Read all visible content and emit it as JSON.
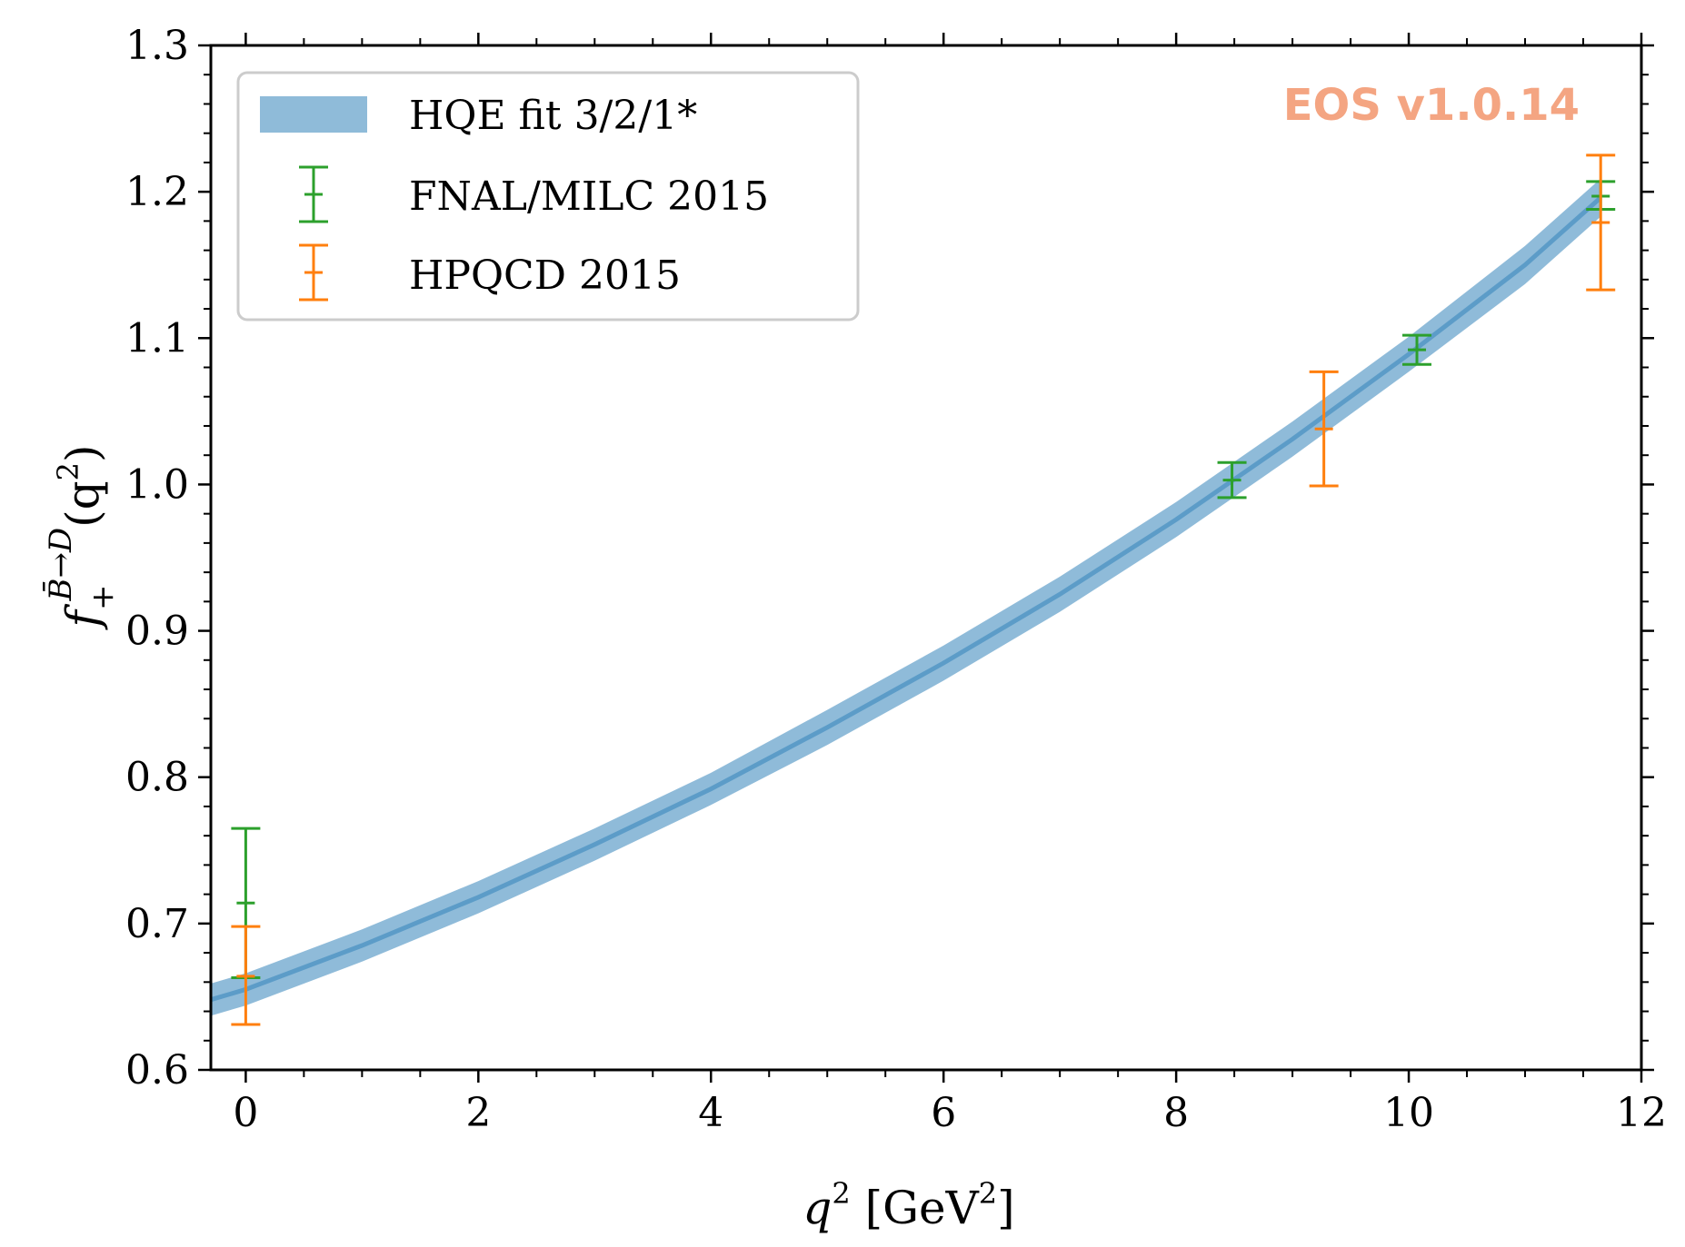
{
  "chart_data": {
    "type": "line",
    "xlabel_main": "q",
    "xlabel_sup": "2",
    "xlabel_unit_open": " [GeV",
    "xlabel_unit_sup": "2",
    "xlabel_unit_close": "]",
    "ylabel_main": "f",
    "ylabel_sup": "B̄→D",
    "ylabel_sub": "+",
    "ylabel_arg_open": "(q",
    "ylabel_arg_sup": "2",
    "ylabel_arg_close": ")",
    "xlim": [
      -0.3,
      12
    ],
    "ylim": [
      0.6,
      1.3
    ],
    "xticks": [
      0,
      2,
      4,
      6,
      8,
      10,
      12
    ],
    "xtick_labels": [
      "0",
      "2",
      "4",
      "6",
      "8",
      "10",
      "12"
    ],
    "yticks": [
      0.6,
      0.7,
      0.8,
      0.9,
      1.0,
      1.1,
      1.2,
      1.3
    ],
    "ytick_labels": [
      "0.6",
      "0.7",
      "0.8",
      "0.9",
      "1.0",
      "1.1",
      "1.2",
      "1.3"
    ],
    "watermark": "EOS v1.0.14",
    "watermark_color": "#f4a582",
    "legend_position": "top-left",
    "band": {
      "name": "HQE fit 3/2/1*",
      "color": "#1f77b4",
      "x": [
        -0.3,
        0,
        1,
        2,
        3,
        4,
        5,
        6,
        7,
        8,
        9,
        10,
        11,
        11.65
      ],
      "central": [
        0.648,
        0.655,
        0.685,
        0.718,
        0.754,
        0.792,
        0.834,
        0.878,
        0.925,
        0.976,
        1.031,
        1.089,
        1.15,
        1.196
      ],
      "lower": [
        0.637,
        0.644,
        0.674,
        0.707,
        0.743,
        0.781,
        0.822,
        0.866,
        0.913,
        0.964,
        1.019,
        1.077,
        1.137,
        1.183
      ],
      "upper": [
        0.659,
        0.666,
        0.696,
        0.729,
        0.765,
        0.803,
        0.846,
        0.89,
        0.937,
        0.988,
        1.043,
        1.101,
        1.163,
        1.209
      ]
    },
    "series": [
      {
        "name": "FNAL/MILC 2015",
        "color": "#2ca02c",
        "points": [
          {
            "x": 0.0,
            "y": 0.714,
            "yerr_low": 0.663,
            "yerr_high": 0.765
          },
          {
            "x": 8.48,
            "y": 1.003,
            "yerr_low": 0.991,
            "yerr_high": 1.015
          },
          {
            "x": 10.07,
            "y": 1.092,
            "yerr_low": 1.082,
            "yerr_high": 1.102
          },
          {
            "x": 11.65,
            "y": 1.197,
            "yerr_low": 1.188,
            "yerr_high": 1.207
          }
        ]
      },
      {
        "name": "HPQCD 2015",
        "color": "#ff7f0e",
        "points": [
          {
            "x": 0.0,
            "y": 0.664,
            "yerr_low": 0.631,
            "yerr_high": 0.698
          },
          {
            "x": 9.27,
            "y": 1.038,
            "yerr_low": 0.999,
            "yerr_high": 1.077
          },
          {
            "x": 11.65,
            "y": 1.179,
            "yerr_low": 1.133,
            "yerr_high": 1.225
          }
        ]
      }
    ]
  }
}
